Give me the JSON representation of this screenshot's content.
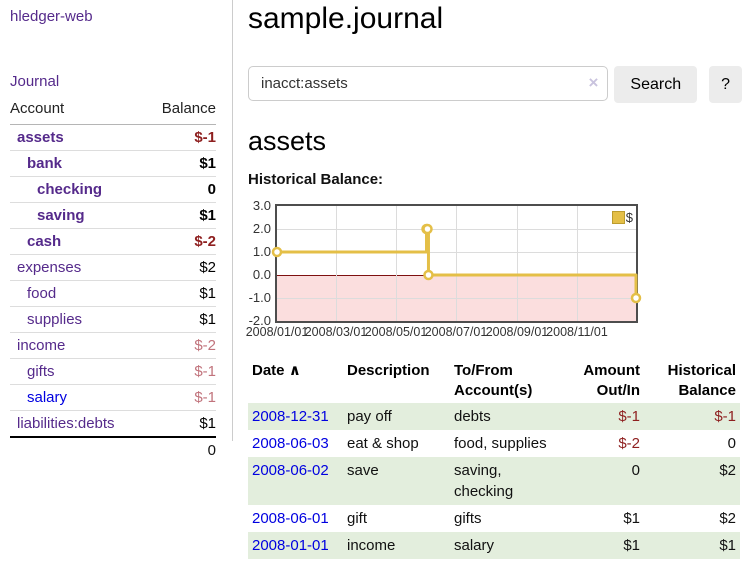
{
  "brand": "hledger-web",
  "colors": {
    "purple": "#552a8b",
    "blue": "#0000e0",
    "neg-strong": "#8e1f1f",
    "neg-soft": "#c1737c",
    "row-green": "#e3eedd",
    "chart-line": "#e4bf47",
    "chart-neg-bg": "#fbdede",
    "chart-zero": "#7e1010",
    "btn-bg": "#ececec",
    "clear-x": "#c9c3de"
  },
  "sidebar": {
    "journal_link": "Journal",
    "accounts": {
      "col_account": "Account",
      "col_balance": "Balance",
      "rows": [
        {
          "name": "assets",
          "indent": 1,
          "bold": true,
          "balance": "$-1",
          "negative": "strong"
        },
        {
          "name": "bank",
          "indent": 2,
          "bold": true,
          "balance": "$1",
          "negative": null
        },
        {
          "name": "checking",
          "indent": 3,
          "bold": true,
          "balance": "0",
          "negative": null
        },
        {
          "name": "saving",
          "indent": 3,
          "bold": true,
          "balance": "$1",
          "negative": null
        },
        {
          "name": "cash",
          "indent": 2,
          "bold": true,
          "balance": "$-2",
          "negative": "strong"
        },
        {
          "name": "expenses",
          "indent": 1,
          "bold": false,
          "balance": "$2",
          "negative": null
        },
        {
          "name": "food",
          "indent": 2,
          "bold": false,
          "balance": "$1",
          "negative": null
        },
        {
          "name": "supplies",
          "indent": 2,
          "bold": false,
          "balance": "$1",
          "negative": null
        },
        {
          "name": "income",
          "indent": 1,
          "bold": false,
          "balance": "$-2",
          "negative": "soft"
        },
        {
          "name": "gifts",
          "indent": 2,
          "bold": false,
          "balance": "$-1",
          "negative": "soft"
        },
        {
          "name": "salary",
          "indent": 2,
          "bold": false,
          "balance": "$-1",
          "negative": "soft",
          "unvisited": true
        },
        {
          "name": "liabilities:debts",
          "indent": 1,
          "bold": false,
          "balance": "$1",
          "negative": null
        }
      ],
      "total": "0"
    }
  },
  "main": {
    "title": "sample.journal",
    "search": {
      "value": "inacct:assets",
      "clear_icon": "×",
      "search_button": "Search",
      "help_button": "?"
    },
    "account_heading": "assets",
    "section_label": "Historical Balance:"
  },
  "chart_data": {
    "type": "line",
    "step": true,
    "title": "Historical Balance",
    "series": [
      {
        "name": "$",
        "points": [
          [
            "2008-01-01",
            1
          ],
          [
            "2008-06-01",
            2
          ],
          [
            "2008-06-02",
            2
          ],
          [
            "2008-06-03",
            0
          ],
          [
            "2008-12-31",
            -1
          ]
        ]
      }
    ],
    "ylim": [
      -2,
      3
    ],
    "yticks": [
      "3.0",
      "2.0",
      "1.0",
      "0.0",
      "-1.0",
      "-2.0"
    ],
    "xticks": [
      "2008/01/01",
      "2008/03/01",
      "2008/05/01",
      "2008/07/01",
      "2008/09/01",
      "2008/11/01"
    ],
    "legend": {
      "label": "$",
      "position": "top-right"
    },
    "negative_region_shaded": true,
    "grid": true
  },
  "register": {
    "headers": [
      {
        "text": "Date",
        "sort_icon": "∧",
        "align": "left"
      },
      {
        "text": "Description",
        "align": "left"
      },
      {
        "text": "To/From\nAccount(s)",
        "align": "left"
      },
      {
        "text": "Amount\nOut/In",
        "align": "right"
      },
      {
        "text": "Historical\nBalance",
        "align": "right"
      }
    ],
    "rows": [
      {
        "date": "2008-12-31",
        "description": "pay off",
        "accounts": "debts",
        "amount": "$-1",
        "amount_negative": true,
        "balance": "$-1",
        "balance_negative": true,
        "shaded": true
      },
      {
        "date": "2008-06-03",
        "description": "eat & shop",
        "accounts": "food, supplies",
        "amount": "$-2",
        "amount_negative": true,
        "balance": "0",
        "balance_negative": false,
        "shaded": false
      },
      {
        "date": "2008-06-02",
        "description": "save",
        "accounts": "saving,\nchecking",
        "amount": "0",
        "amount_negative": false,
        "balance": "$2",
        "balance_negative": false,
        "shaded": true
      },
      {
        "date": "2008-06-01",
        "description": "gift",
        "accounts": "gifts",
        "amount": "$1",
        "amount_negative": false,
        "balance": "$2",
        "balance_negative": false,
        "shaded": false
      },
      {
        "date": "2008-01-01",
        "description": "income",
        "accounts": "salary",
        "amount": "$1",
        "amount_negative": false,
        "balance": "$1",
        "balance_negative": false,
        "shaded": true
      }
    ]
  }
}
